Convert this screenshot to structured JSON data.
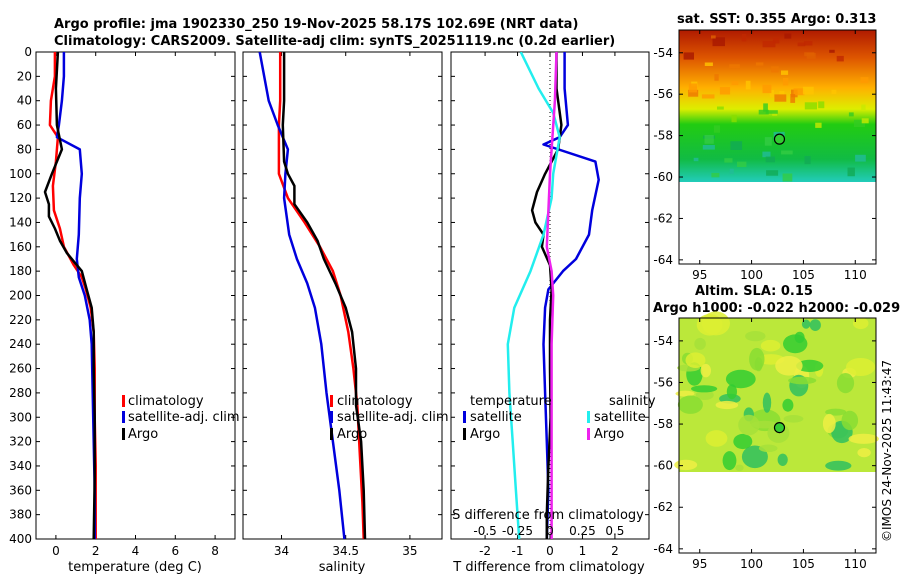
{
  "header": {
    "line1": "Argo profile: jma 1902330_250 19-Nov-2025 58.17S 102.69E (NRT data)",
    "line2": "Climatology: CARS2009. Satellite-adj clim: synTS_20251119.nc (0.2d earlier)"
  },
  "colors": {
    "climatology": "#ff0000",
    "satellite": "#0000dd",
    "argo": "#000000",
    "sat_salinity": "#22eeee",
    "argo_salinity": "#ee22ee"
  },
  "chart_data": [
    {
      "type": "line",
      "id": "temperature",
      "xlabel": "temperature (deg C)",
      "ylabel": "depth",
      "xlim": [
        -1,
        9
      ],
      "ylim": [
        0,
        400
      ],
      "xticks": [
        0,
        2,
        4,
        6,
        8
      ],
      "yticks": [
        0,
        20,
        40,
        60,
        80,
        100,
        120,
        140,
        160,
        180,
        200,
        220,
        240,
        260,
        280,
        300,
        320,
        340,
        360,
        380,
        400
      ],
      "legend": [
        "climatology",
        "satellite-adj. clim",
        "Argo"
      ],
      "legend_position": "lower-right",
      "series": [
        {
          "name": "climatology",
          "color": "#ff0000",
          "points": [
            [
              -0.05,
              0
            ],
            [
              -0.05,
              20
            ],
            [
              -0.25,
              40
            ],
            [
              -0.3,
              60
            ],
            [
              0.1,
              70
            ],
            [
              0,
              90
            ],
            [
              -0.15,
              110
            ],
            [
              -0.1,
              130
            ],
            [
              0.2,
              145
            ],
            [
              0.4,
              160
            ],
            [
              0.9,
              175
            ],
            [
              1.3,
              185
            ],
            [
              1.5,
              195
            ],
            [
              1.75,
              210
            ],
            [
              1.9,
              230
            ],
            [
              1.95,
              260
            ],
            [
              1.95,
              300
            ],
            [
              2.0,
              340
            ],
            [
              2.0,
              400
            ]
          ]
        },
        {
          "name": "satellite-adj. clim",
          "color": "#0000dd",
          "points": [
            [
              0.4,
              0
            ],
            [
              0.4,
              20
            ],
            [
              0.3,
              40
            ],
            [
              0.15,
              60
            ],
            [
              0.05,
              70
            ],
            [
              1.2,
              80
            ],
            [
              1.3,
              100
            ],
            [
              1.2,
              120
            ],
            [
              1.15,
              150
            ],
            [
              1.05,
              170
            ],
            [
              1.15,
              185
            ],
            [
              1.45,
              200
            ],
            [
              1.7,
              220
            ],
            [
              1.8,
              240
            ],
            [
              1.85,
              280
            ],
            [
              1.9,
              320
            ],
            [
              1.95,
              360
            ],
            [
              1.95,
              400
            ]
          ]
        },
        {
          "name": "Argo",
          "color": "#000000",
          "points": [
            [
              0.1,
              0
            ],
            [
              0.0,
              30
            ],
            [
              0.05,
              60
            ],
            [
              0.3,
              80
            ],
            [
              -0.2,
              100
            ],
            [
              -0.55,
              115
            ],
            [
              -0.35,
              125
            ],
            [
              -0.35,
              135
            ],
            [
              -0.05,
              145
            ],
            [
              0.2,
              155
            ],
            [
              0.55,
              165
            ],
            [
              0.9,
              172
            ],
            [
              1.3,
              180
            ],
            [
              1.55,
              195
            ],
            [
              1.8,
              210
            ],
            [
              1.9,
              230
            ],
            [
              1.9,
              260
            ],
            [
              1.95,
              300
            ],
            [
              1.95,
              350
            ],
            [
              1.9,
              400
            ]
          ]
        }
      ]
    },
    {
      "type": "line",
      "id": "salinity",
      "xlabel": "salinity",
      "xlim": [
        33.7,
        35.25
      ],
      "ylim": [
        0,
        400
      ],
      "xticks": [
        34,
        34.5,
        35
      ],
      "xticklabels": [
        "34",
        "34.5",
        "35"
      ],
      "legend": [
        "climatology",
        "satellite-adj. clim",
        "Argo"
      ],
      "legend_position": "lower-right",
      "series": [
        {
          "name": "climatology",
          "color": "#ff0000",
          "points": [
            [
              33.99,
              0
            ],
            [
              33.99,
              40
            ],
            [
              33.98,
              60
            ],
            [
              33.98,
              100
            ],
            [
              34.05,
              120
            ],
            [
              34.18,
              140
            ],
            [
              34.3,
              160
            ],
            [
              34.4,
              180
            ],
            [
              34.46,
              200
            ],
            [
              34.52,
              230
            ],
            [
              34.56,
              260
            ],
            [
              34.59,
              290
            ],
            [
              34.61,
              330
            ],
            [
              34.63,
              370
            ],
            [
              34.64,
              400
            ]
          ]
        },
        {
          "name": "satellite-adj. clim",
          "color": "#0000dd",
          "points": [
            [
              33.83,
              0
            ],
            [
              33.9,
              40
            ],
            [
              33.97,
              60
            ],
            [
              34.05,
              80
            ],
            [
              34.03,
              100
            ],
            [
              34.02,
              120
            ],
            [
              34.06,
              150
            ],
            [
              34.12,
              170
            ],
            [
              34.2,
              190
            ],
            [
              34.26,
              210
            ],
            [
              34.31,
              240
            ],
            [
              34.35,
              280
            ],
            [
              34.4,
              320
            ],
            [
              34.45,
              360
            ],
            [
              34.49,
              400
            ]
          ]
        },
        {
          "name": "Argo",
          "color": "#000000",
          "points": [
            [
              34.02,
              0
            ],
            [
              34.02,
              40
            ],
            [
              34.01,
              60
            ],
            [
              34.02,
              90
            ],
            [
              34.05,
              100
            ],
            [
              34.1,
              110
            ],
            [
              34.1,
              125
            ],
            [
              34.2,
              140
            ],
            [
              34.28,
              155
            ],
            [
              34.33,
              170
            ],
            [
              34.42,
              190
            ],
            [
              34.5,
              210
            ],
            [
              34.55,
              230
            ],
            [
              34.58,
              260
            ],
            [
              34.58,
              290
            ],
            [
              34.62,
              320
            ],
            [
              34.64,
              360
            ],
            [
              34.65,
              400
            ]
          ]
        }
      ]
    },
    {
      "type": "line",
      "id": "difference",
      "xlabel": "T difference from climatology",
      "xlabel_top": "S difference from climatology",
      "xlim": [
        -3.05,
        3.05
      ],
      "ylim": [
        0,
        400
      ],
      "xticks": [
        -2,
        -1,
        0,
        1,
        2
      ],
      "s_ticks": [
        -0.5,
        -0.25,
        0,
        0.25,
        0.5
      ],
      "s_ticklabels": [
        "-0.5",
        "-0.25",
        "0",
        "0.25",
        "0.5"
      ],
      "s_scale": 4,
      "legend_temperature": [
        "temperature",
        "satellite",
        "Argo"
      ],
      "legend_salinity": [
        "salinity",
        "satellite",
        "Argo"
      ],
      "series": [
        {
          "name": "satellite",
          "quantity": "temperature",
          "color": "#0000dd",
          "points": [
            [
              0.45,
              0
            ],
            [
              0.45,
              30
            ],
            [
              0.55,
              60
            ],
            [
              0.3,
              70
            ],
            [
              -0.2,
              76
            ],
            [
              1.4,
              90
            ],
            [
              1.5,
              105
            ],
            [
              1.3,
              130
            ],
            [
              1.2,
              150
            ],
            [
              0.8,
              170
            ],
            [
              0.4,
              180
            ],
            [
              -0.05,
              195
            ],
            [
              -0.15,
              210
            ],
            [
              -0.2,
              240
            ],
            [
              -0.15,
              280
            ],
            [
              -0.1,
              320
            ],
            [
              -0.05,
              360
            ],
            [
              -0.1,
              400
            ]
          ]
        },
        {
          "name": "Argo",
          "quantity": "temperature",
          "color": "#000000",
          "points": [
            [
              0.2,
              0
            ],
            [
              0.2,
              30
            ],
            [
              0.35,
              60
            ],
            [
              0.25,
              80
            ],
            [
              -0.15,
              100
            ],
            [
              -0.4,
              115
            ],
            [
              -0.55,
              130
            ],
            [
              -0.45,
              140
            ],
            [
              -0.2,
              150
            ],
            [
              -0.25,
              160
            ],
            [
              0,
              175
            ],
            [
              0.05,
              195
            ],
            [
              0,
              220
            ],
            [
              0,
              260
            ],
            [
              0.02,
              300
            ],
            [
              -0.05,
              340
            ],
            [
              -0.1,
              380
            ],
            [
              -0.1,
              400
            ]
          ]
        },
        {
          "name": "satellite",
          "quantity": "salinity",
          "color": "#22eeee",
          "points": [
            [
              -0.9,
              0
            ],
            [
              -0.35,
              30
            ],
            [
              0.1,
              50
            ],
            [
              0.3,
              70
            ],
            [
              0.1,
              100
            ],
            [
              0.05,
              120
            ],
            [
              -0.2,
              150
            ],
            [
              -0.6,
              180
            ],
            [
              -1.1,
              210
            ],
            [
              -1.3,
              240
            ],
            [
              -1.25,
              280
            ],
            [
              -1.15,
              320
            ],
            [
              -1.05,
              360
            ],
            [
              -0.95,
              400
            ]
          ]
        },
        {
          "name": "Argo",
          "quantity": "salinity",
          "color": "#ee22ee",
          "points": [
            [
              0.2,
              0
            ],
            [
              0.15,
              40
            ],
            [
              0.05,
              80
            ],
            [
              0,
              100
            ],
            [
              -0.05,
              130
            ],
            [
              -0.1,
              160
            ],
            [
              0.05,
              180
            ],
            [
              0.1,
              200
            ],
            [
              0.05,
              240
            ],
            [
              0.05,
              300
            ],
            [
              0.05,
              360
            ],
            [
              0.05,
              400
            ]
          ]
        }
      ]
    },
    {
      "type": "heatmap",
      "id": "sst-map",
      "title": "sat. SST: 0.355 Argo: 0.313",
      "xlim": [
        93,
        112
      ],
      "ylim": [
        -64.2,
        -52.9
      ],
      "xticks": [
        95,
        100,
        105,
        110
      ],
      "yticks": [
        -54,
        -56,
        -58,
        -60,
        -62,
        -64
      ],
      "marker": {
        "lon": 102.69,
        "lat": -58.17
      }
    },
    {
      "type": "heatmap",
      "id": "sla-map",
      "title": "Altim. SLA: 0.15",
      "subtitle": "Argo h1000: -0.022 h2000: -0.029",
      "xlim": [
        93,
        112
      ],
      "ylim": [
        -64.2,
        -52.9
      ],
      "xticks": [
        95,
        100,
        105,
        110
      ],
      "yticks": [
        -54,
        -56,
        -58,
        -60,
        -62,
        -64
      ],
      "marker": {
        "lon": 102.69,
        "lat": -58.17
      }
    }
  ],
  "footer": {
    "credit": "©IMOS 24-Nov-2025 11:43:47"
  }
}
